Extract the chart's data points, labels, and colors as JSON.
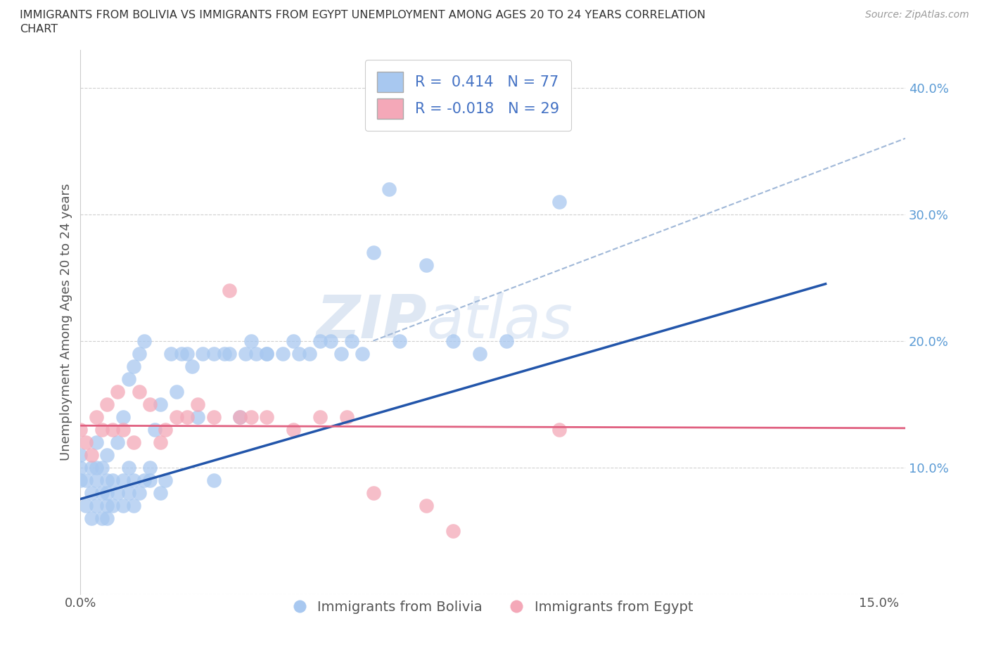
{
  "title_line1": "IMMIGRANTS FROM BOLIVIA VS IMMIGRANTS FROM EGYPT UNEMPLOYMENT AMONG AGES 20 TO 24 YEARS CORRELATION",
  "title_line2": "CHART",
  "source": "Source: ZipAtlas.com",
  "ylabel": "Unemployment Among Ages 20 to 24 years",
  "xlim": [
    0.0,
    0.155
  ],
  "ylim": [
    0.0,
    0.43
  ],
  "xticks": [
    0.0,
    0.05,
    0.1,
    0.15
  ],
  "xticklabels": [
    "0.0%",
    "",
    "",
    "15.0%"
  ],
  "yticks": [
    0.0,
    0.1,
    0.2,
    0.3,
    0.4
  ],
  "yticklabels": [
    "",
    "10.0%",
    "20.0%",
    "30.0%",
    "40.0%"
  ],
  "bolivia_color": "#a8c8f0",
  "egypt_color": "#f4a8b8",
  "bolivia_line_color": "#2255aa",
  "egypt_line_color": "#e06080",
  "dashed_color": "#a0b8d8",
  "R_bolivia": 0.414,
  "N_bolivia": 77,
  "R_egypt": -0.018,
  "N_egypt": 29,
  "watermark_zip": "ZIP",
  "watermark_atlas": "atlas",
  "bolivia_scatter_x": [
    0.0,
    0.0,
    0.0,
    0.001,
    0.001,
    0.002,
    0.002,
    0.002,
    0.003,
    0.003,
    0.003,
    0.003,
    0.004,
    0.004,
    0.004,
    0.005,
    0.005,
    0.005,
    0.005,
    0.005,
    0.006,
    0.006,
    0.007,
    0.007,
    0.008,
    0.008,
    0.008,
    0.009,
    0.009,
    0.009,
    0.01,
    0.01,
    0.01,
    0.011,
    0.011,
    0.012,
    0.012,
    0.013,
    0.013,
    0.014,
    0.015,
    0.015,
    0.016,
    0.017,
    0.018,
    0.019,
    0.02,
    0.021,
    0.022,
    0.023,
    0.025,
    0.025,
    0.027,
    0.028,
    0.03,
    0.031,
    0.032,
    0.033,
    0.035,
    0.035,
    0.038,
    0.04,
    0.041,
    0.043,
    0.045,
    0.047,
    0.049,
    0.051,
    0.053,
    0.055,
    0.058,
    0.06,
    0.065,
    0.07,
    0.075,
    0.08,
    0.09
  ],
  "bolivia_scatter_y": [
    0.09,
    0.1,
    0.11,
    0.07,
    0.09,
    0.06,
    0.08,
    0.1,
    0.07,
    0.09,
    0.1,
    0.12,
    0.06,
    0.08,
    0.1,
    0.06,
    0.07,
    0.08,
    0.09,
    0.11,
    0.07,
    0.09,
    0.08,
    0.12,
    0.07,
    0.09,
    0.14,
    0.08,
    0.1,
    0.17,
    0.07,
    0.09,
    0.18,
    0.08,
    0.19,
    0.09,
    0.2,
    0.09,
    0.1,
    0.13,
    0.08,
    0.15,
    0.09,
    0.19,
    0.16,
    0.19,
    0.19,
    0.18,
    0.14,
    0.19,
    0.09,
    0.19,
    0.19,
    0.19,
    0.14,
    0.19,
    0.2,
    0.19,
    0.19,
    0.19,
    0.19,
    0.2,
    0.19,
    0.19,
    0.2,
    0.2,
    0.19,
    0.2,
    0.19,
    0.27,
    0.32,
    0.2,
    0.26,
    0.2,
    0.19,
    0.2,
    0.31
  ],
  "egypt_scatter_x": [
    0.0,
    0.001,
    0.002,
    0.003,
    0.004,
    0.005,
    0.006,
    0.007,
    0.008,
    0.01,
    0.011,
    0.013,
    0.015,
    0.016,
    0.018,
    0.02,
    0.022,
    0.025,
    0.028,
    0.03,
    0.032,
    0.035,
    0.04,
    0.045,
    0.05,
    0.055,
    0.065,
    0.07,
    0.09
  ],
  "egypt_scatter_y": [
    0.13,
    0.12,
    0.11,
    0.14,
    0.13,
    0.15,
    0.13,
    0.16,
    0.13,
    0.12,
    0.16,
    0.15,
    0.12,
    0.13,
    0.14,
    0.14,
    0.15,
    0.14,
    0.24,
    0.14,
    0.14,
    0.14,
    0.13,
    0.14,
    0.14,
    0.08,
    0.07,
    0.05,
    0.13
  ],
  "bolivia_line_x0": 0.0,
  "bolivia_line_y0": 0.075,
  "bolivia_line_x1": 0.14,
  "bolivia_line_y1": 0.245,
  "egypt_line_x0": 0.0,
  "egypt_line_x1": 0.155,
  "egypt_line_y0": 0.133,
  "egypt_line_y1": 0.131,
  "dashed_line_x0": 0.055,
  "dashed_line_y0": 0.2,
  "dashed_line_x1": 0.155,
  "dashed_line_y1": 0.36
}
